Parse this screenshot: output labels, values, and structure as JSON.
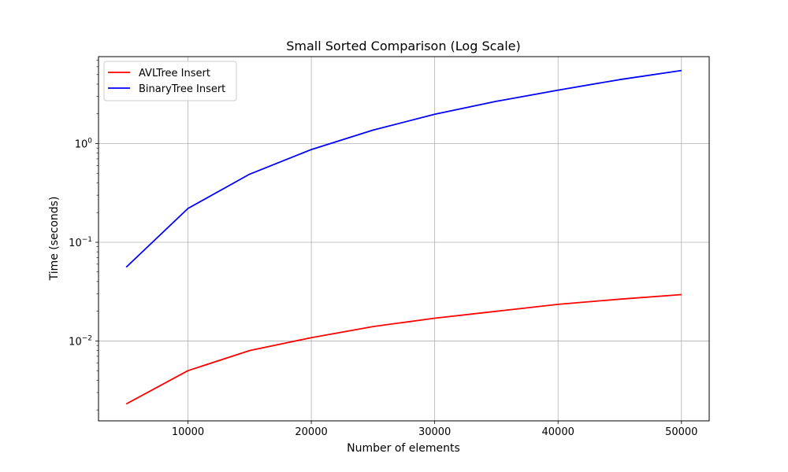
{
  "chart_data": {
    "type": "line",
    "title": "Small Sorted Comparison (Log Scale)",
    "xlabel": "Number of elements",
    "ylabel": "Time (seconds)",
    "x": [
      5000,
      10000,
      15000,
      20000,
      25000,
      30000,
      35000,
      40000,
      45000,
      50000
    ],
    "series": [
      {
        "name": "AVLTree Insert",
        "color": "#ff0000",
        "values": [
          0.0023,
          0.005,
          0.008,
          0.0108,
          0.014,
          0.017,
          0.02,
          0.0235,
          0.0265,
          0.0295
        ]
      },
      {
        "name": "BinaryTree Insert",
        "color": "#0000ff",
        "values": [
          0.056,
          0.22,
          0.49,
          0.87,
          1.37,
          1.98,
          2.68,
          3.48,
          4.45,
          5.5
        ]
      }
    ],
    "xticks": [
      10000,
      20000,
      30000,
      40000,
      50000
    ],
    "xtick_labels": [
      "10000",
      "20000",
      "30000",
      "40000",
      "50000"
    ],
    "xlim": [
      2750,
      52250
    ],
    "yscale": "log",
    "ylim": [
      0.00155,
      7.6
    ],
    "yticks_major": [
      0.01,
      0.1,
      1
    ],
    "ytick_labels": [
      {
        "base": "10",
        "exp": "−2"
      },
      {
        "base": "10",
        "exp": "−1"
      },
      {
        "base": "10",
        "exp": "0"
      }
    ],
    "grid": true,
    "legend_position": "top-left"
  }
}
